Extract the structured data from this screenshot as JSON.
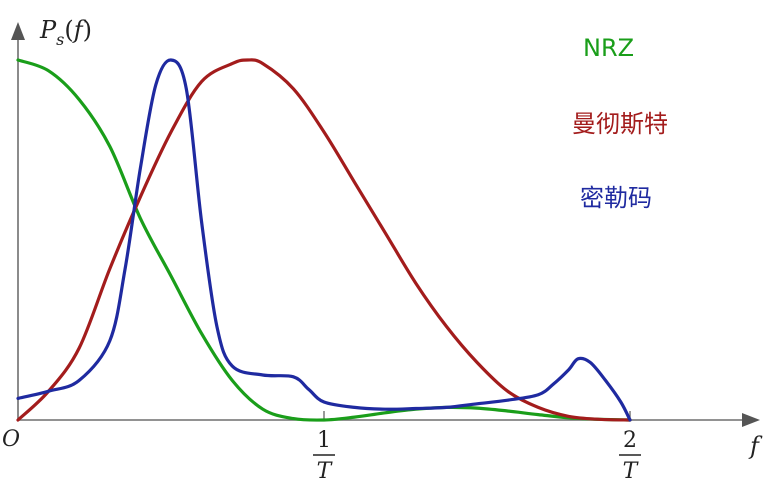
{
  "chart_data": {
    "type": "line",
    "ylabel": {
      "symbol": "P",
      "subscript": "s",
      "open": "(",
      "arg": "f",
      "close": ")"
    },
    "xlabel": "f",
    "origin_label": "O",
    "x_ticks": [
      {
        "value": 1,
        "numerator": "1",
        "denominator": "T"
      },
      {
        "value": 2,
        "numerator": "2",
        "denominator": "T"
      }
    ],
    "x_range": [
      0,
      2.5
    ],
    "y_range": [
      0,
      1.05
    ],
    "grid": false,
    "legend_position": "top-right",
    "series": [
      {
        "name": "NRZ",
        "color": "#1a9e1a",
        "points": [
          [
            0,
            1.0
          ],
          [
            0.1,
            0.97
          ],
          [
            0.2,
            0.89
          ],
          [
            0.3,
            0.76
          ],
          [
            0.4,
            0.56
          ],
          [
            0.5,
            0.4
          ],
          [
            0.6,
            0.24
          ],
          [
            0.7,
            0.11
          ],
          [
            0.8,
            0.03
          ],
          [
            0.9,
            0.004
          ],
          [
            1.0,
            0.0
          ],
          [
            1.1,
            0.008
          ],
          [
            1.2,
            0.02
          ],
          [
            1.3,
            0.03
          ],
          [
            1.4,
            0.035
          ],
          [
            1.5,
            0.033
          ],
          [
            1.6,
            0.025
          ],
          [
            1.7,
            0.015
          ],
          [
            1.8,
            0.006
          ],
          [
            1.9,
            0.002
          ],
          [
            2.0,
            0.0
          ]
        ]
      },
      {
        "name": "曼彻斯特",
        "color": "#a31c1c",
        "points": [
          [
            0,
            0.0
          ],
          [
            0.1,
            0.08
          ],
          [
            0.2,
            0.2
          ],
          [
            0.3,
            0.42
          ],
          [
            0.4,
            0.62
          ],
          [
            0.5,
            0.8
          ],
          [
            0.6,
            0.94
          ],
          [
            0.7,
            0.99
          ],
          [
            0.75,
            1.0
          ],
          [
            0.8,
            0.99
          ],
          [
            0.9,
            0.92
          ],
          [
            1.0,
            0.8
          ],
          [
            1.1,
            0.66
          ],
          [
            1.2,
            0.52
          ],
          [
            1.3,
            0.38
          ],
          [
            1.4,
            0.26
          ],
          [
            1.5,
            0.16
          ],
          [
            1.6,
            0.08
          ],
          [
            1.7,
            0.035
          ],
          [
            1.8,
            0.01
          ],
          [
            1.9,
            0.002
          ],
          [
            2.0,
            0.0
          ]
        ]
      },
      {
        "name": "密勒码",
        "color": "#1f2aa0",
        "points": [
          [
            0,
            0.06
          ],
          [
            0.1,
            0.08
          ],
          [
            0.2,
            0.11
          ],
          [
            0.3,
            0.22
          ],
          [
            0.35,
            0.42
          ],
          [
            0.4,
            0.7
          ],
          [
            0.45,
            0.93
          ],
          [
            0.5,
            1.0
          ],
          [
            0.55,
            0.92
          ],
          [
            0.6,
            0.55
          ],
          [
            0.65,
            0.26
          ],
          [
            0.7,
            0.15
          ],
          [
            0.8,
            0.125
          ],
          [
            0.9,
            0.12
          ],
          [
            0.95,
            0.085
          ],
          [
            1.0,
            0.05
          ],
          [
            1.1,
            0.035
          ],
          [
            1.2,
            0.03
          ],
          [
            1.3,
            0.032
          ],
          [
            1.4,
            0.035
          ],
          [
            1.5,
            0.045
          ],
          [
            1.6,
            0.055
          ],
          [
            1.7,
            0.07
          ],
          [
            1.75,
            0.1
          ],
          [
            1.8,
            0.14
          ],
          [
            1.83,
            0.17
          ],
          [
            1.87,
            0.16
          ],
          [
            1.92,
            0.11
          ],
          [
            1.97,
            0.05
          ],
          [
            2.0,
            0.0
          ]
        ]
      }
    ]
  }
}
